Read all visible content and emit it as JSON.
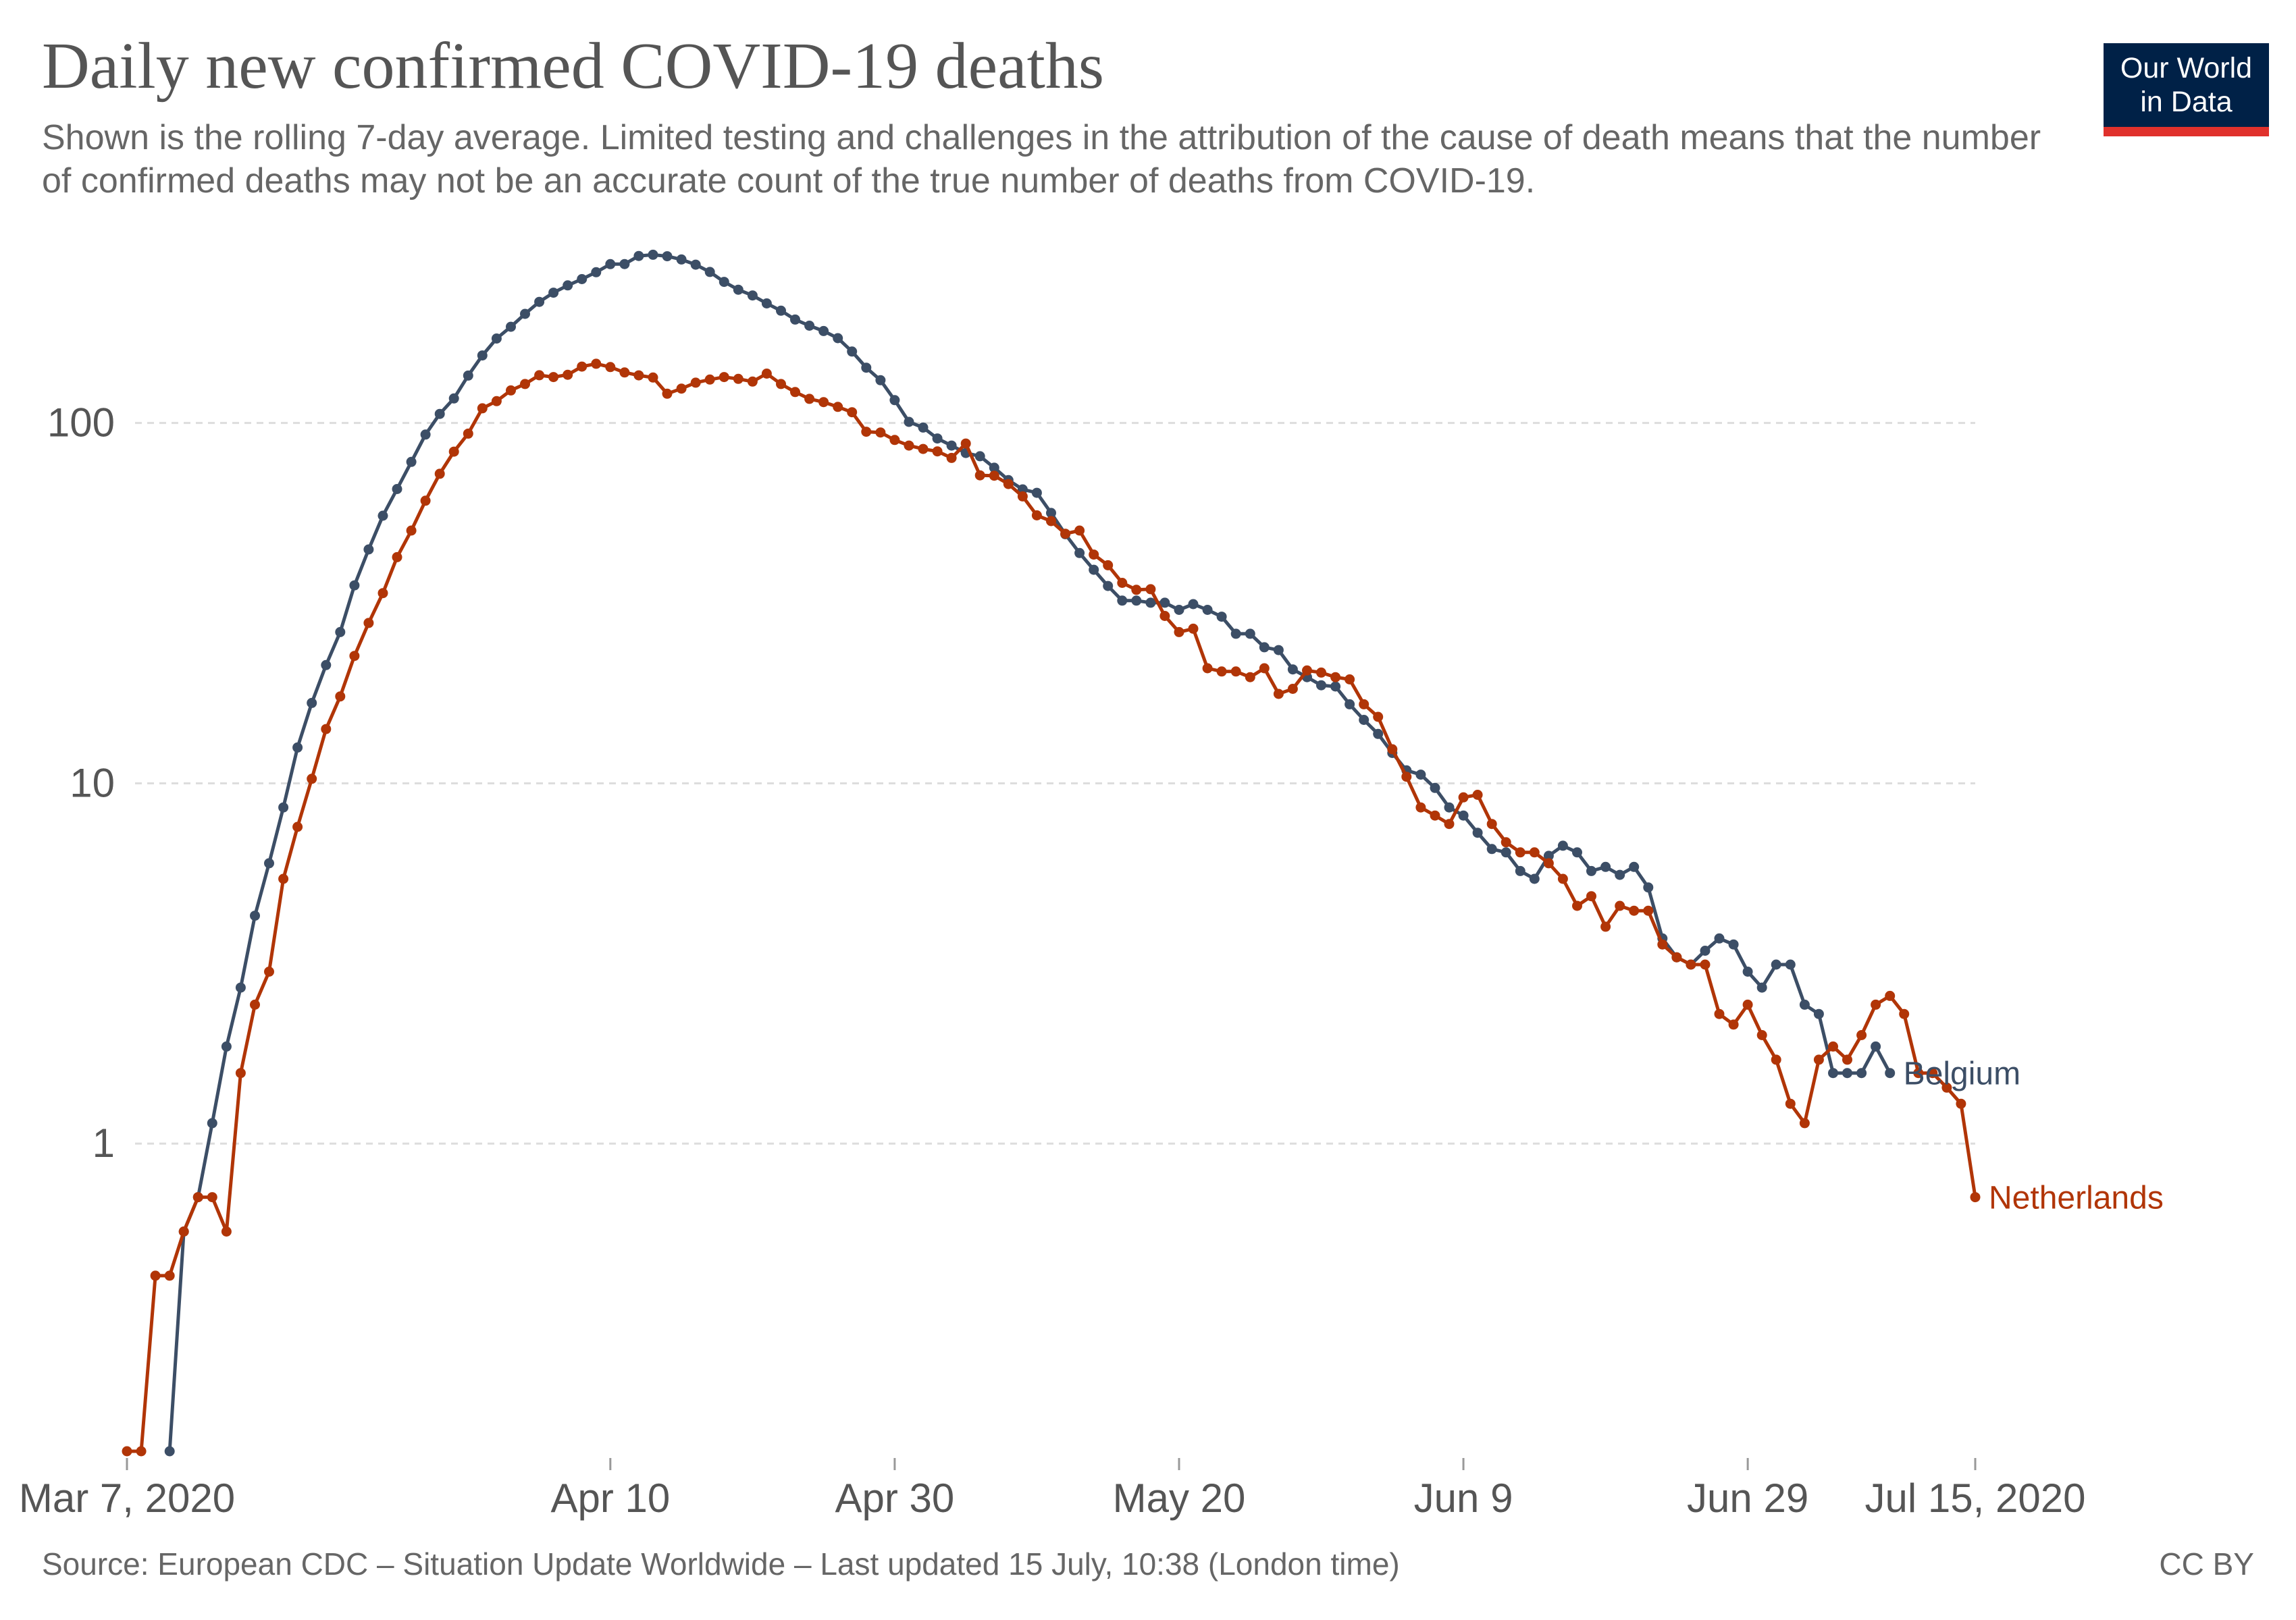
{
  "header": {
    "title": "Daily new confirmed COVID-19 deaths",
    "subtitle": "Shown is the rolling 7-day average. Limited testing and challenges in the attribution of the cause of death means that the number of confirmed deaths may not be an accurate count of the true number of deaths from COVID-19.",
    "logo_line1": "Our World",
    "logo_line2": "in Data"
  },
  "footer": {
    "source": "Source: European CDC – Situation Update Worldwide – Last updated 15 July, 10:38 (London time)",
    "license": "CC BY"
  },
  "colors": {
    "Belgium": "#3c4e66",
    "Netherlands": "#b13507",
    "grid": "#dddddd",
    "logo_bg": "#002147",
    "logo_accent": "#e0312c"
  },
  "chart_data": {
    "type": "line",
    "title": "Daily new confirmed COVID-19 deaths",
    "subtitle": "Shown is the rolling 7-day average. Limited testing and challenges in the attribution of the cause of death means that the number of confirmed deaths may not be an accurate count of the true number of deaths from COVID-19.",
    "xlabel": "",
    "ylabel": "",
    "y_scale": "log",
    "ylim": [
      0.14,
      300
    ],
    "xlim": [
      "2020-03-07",
      "2020-07-15"
    ],
    "grid": true,
    "legend": "inline labels at line ends",
    "y_ticks": [
      {
        "value": 1,
        "label": "1"
      },
      {
        "value": 10,
        "label": "10"
      },
      {
        "value": 100,
        "label": "100"
      }
    ],
    "x_ticks": [
      {
        "date": "2020-03-07",
        "label": "Mar 7, 2020"
      },
      {
        "date": "2020-04-10",
        "label": "Apr 10"
      },
      {
        "date": "2020-04-30",
        "label": "Apr 30"
      },
      {
        "date": "2020-05-20",
        "label": "May 20"
      },
      {
        "date": "2020-06-09",
        "label": "Jun 9"
      },
      {
        "date": "2020-06-29",
        "label": "Jun 29"
      },
      {
        "date": "2020-07-15",
        "label": "Jul 15, 2020"
      }
    ],
    "series": [
      {
        "name": "Belgium",
        "color": "#3c4e66",
        "start_date": "2020-03-10",
        "values": [
          0.14,
          0.57,
          0.71,
          1.14,
          1.86,
          2.71,
          4.29,
          6,
          8.57,
          12.57,
          16.71,
          21.29,
          26.29,
          35.43,
          44.57,
          55.29,
          65.57,
          78,
          92.86,
          106,
          117,
          135.43,
          154,
          171.57,
          185,
          200.86,
          216.86,
          230,
          241,
          250.86,
          262.14,
          276,
          276.14,
          290.86,
          293.14,
          290.29,
          284.43,
          275.14,
          262.57,
          246.43,
          234.43,
          226,
          214.71,
          205,
          193.71,
          186.29,
          180,
          172,
          157.86,
          142.43,
          131.43,
          115.71,
          100.71,
          97.14,
          90.57,
          86.57,
          82.57,
          80.86,
          75.14,
          69.43,
          65.43,
          64,
          56.29,
          49.14,
          43.57,
          39.14,
          35.29,
          32.14,
          32.14,
          31.71,
          31.71,
          30.29,
          31.43,
          30.29,
          29,
          26,
          26,
          23.86,
          23.43,
          20.71,
          19.71,
          18.71,
          18.57,
          16.57,
          15,
          13.71,
          12.14,
          10.86,
          10.57,
          9.71,
          8.57,
          8.14,
          7.29,
          6.57,
          6.43,
          5.71,
          5.43,
          6.29,
          6.71,
          6.43,
          5.71,
          5.86,
          5.57,
          5.86,
          5.14,
          3.71,
          3.29,
          3.14,
          3.43,
          3.71,
          3.57,
          3,
          2.71,
          3.14,
          3.14,
          2.43,
          2.29,
          1.57,
          1.57,
          1.57,
          1.86,
          1.57
        ]
      },
      {
        "name": "Netherlands",
        "color": "#b13507",
        "start_date": "2020-03-07",
        "values": [
          0.14,
          0.14,
          0.43,
          0.43,
          0.57,
          0.71,
          0.71,
          0.57,
          1.57,
          2.43,
          3,
          5.43,
          7.57,
          10.29,
          14.14,
          17.43,
          22.57,
          27.86,
          33.71,
          42.43,
          50.29,
          60.86,
          72.29,
          83.29,
          93.43,
          109.86,
          115,
          123.14,
          128.29,
          135.71,
          134.14,
          136.14,
          143.43,
          146,
          143,
          138.14,
          135.57,
          133.71,
          120.57,
          124.57,
          129.43,
          132,
          134.14,
          132.57,
          130.29,
          137.14,
          128.29,
          121.86,
          116.71,
          114.29,
          110.86,
          107.14,
          94.57,
          94.14,
          89.71,
          86.57,
          84.71,
          83.43,
          80,
          87.71,
          71.57,
          71.43,
          67.71,
          62.57,
          55.43,
          53.43,
          49.29,
          50.29,
          43.14,
          40.29,
          36,
          34.43,
          34.57,
          29.14,
          26.29,
          26.86,
          20.86,
          20.43,
          20.43,
          19.71,
          20.86,
          17.71,
          18.29,
          20.57,
          20.29,
          19.71,
          19.43,
          16.57,
          15.29,
          12.43,
          10.43,
          8.57,
          8.14,
          7.71,
          9.14,
          9.29,
          7.71,
          6.86,
          6.43,
          6.43,
          6,
          5.43,
          4.57,
          4.86,
          4,
          4.57,
          4.43,
          4.43,
          3.57,
          3.29,
          3.14,
          3.14,
          2.29,
          2.14,
          2.43,
          2,
          1.71,
          1.29,
          1.14,
          1.71,
          1.86,
          1.71,
          2,
          2.43,
          2.57,
          2.29,
          1.57,
          1.57,
          1.43,
          1.29,
          0.71
        ]
      }
    ]
  }
}
